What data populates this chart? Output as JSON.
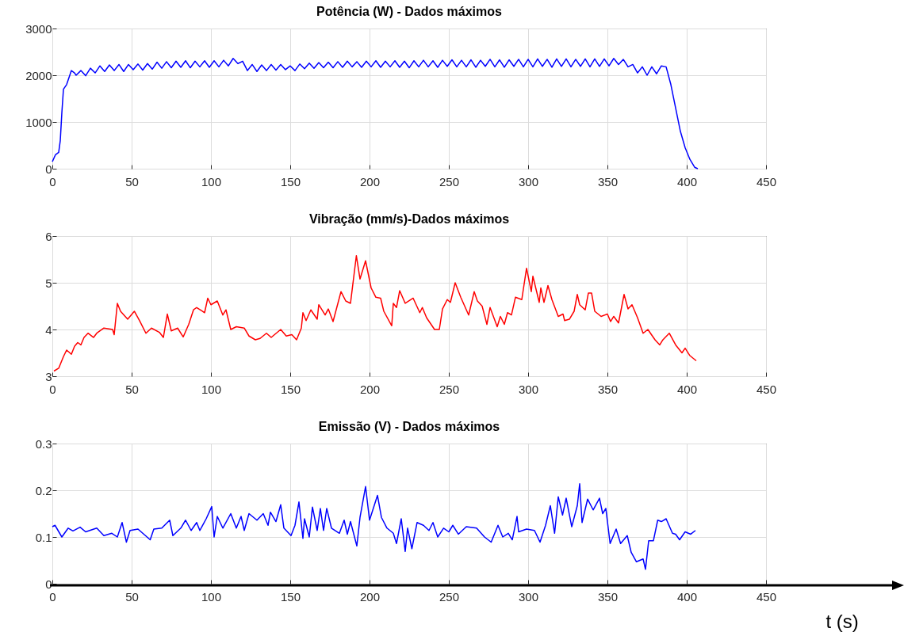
{
  "chart_data": [
    {
      "type": "line",
      "title": "Potência (W) - Dados máximos",
      "color": "#0000ff",
      "marker": "none",
      "line_style": "solid",
      "grid": true,
      "xlim": [
        0,
        450
      ],
      "xticks": [
        0,
        50,
        100,
        150,
        200,
        250,
        300,
        350,
        400,
        450
      ],
      "ylim": [
        0,
        3000
      ],
      "yticks": [
        0,
        1000,
        2000,
        3000
      ],
      "x": [
        0,
        2,
        4,
        5,
        6,
        7,
        9,
        11,
        12,
        14,
        15,
        18,
        21,
        24,
        27,
        30,
        33,
        36,
        39,
        42,
        45,
        48,
        51,
        54,
        57,
        60,
        63,
        66,
        69,
        72,
        75,
        78,
        81,
        84,
        87,
        90,
        93,
        96,
        99,
        102,
        105,
        108,
        111,
        114,
        117,
        120,
        123,
        126,
        129,
        132,
        135,
        138,
        141,
        144,
        147,
        150,
        153,
        156,
        159,
        162,
        165,
        168,
        171,
        174,
        177,
        180,
        183,
        186,
        189,
        192,
        195,
        198,
        201,
        204,
        207,
        210,
        213,
        216,
        219,
        222,
        225,
        228,
        231,
        234,
        237,
        240,
        243,
        246,
        249,
        252,
        255,
        258,
        261,
        264,
        267,
        270,
        273,
        276,
        279,
        282,
        285,
        288,
        291,
        294,
        297,
        300,
        303,
        306,
        309,
        312,
        315,
        318,
        321,
        324,
        327,
        330,
        333,
        336,
        339,
        342,
        345,
        348,
        351,
        354,
        357,
        360,
        363,
        366,
        369,
        372,
        375,
        378,
        381,
        384,
        387,
        390,
        393,
        396,
        399,
        402,
        405,
        407
      ],
      "values": [
        150,
        300,
        350,
        600,
        1200,
        1700,
        1800,
        2000,
        2100,
        2050,
        2000,
        2100,
        1990,
        2150,
        2050,
        2200,
        2080,
        2220,
        2100,
        2230,
        2080,
        2230,
        2120,
        2240,
        2110,
        2250,
        2130,
        2280,
        2150,
        2290,
        2160,
        2300,
        2170,
        2310,
        2160,
        2300,
        2180,
        2310,
        2170,
        2310,
        2180,
        2320,
        2200,
        2360,
        2250,
        2300,
        2100,
        2230,
        2080,
        2220,
        2100,
        2230,
        2110,
        2230,
        2120,
        2200,
        2100,
        2240,
        2140,
        2260,
        2150,
        2270,
        2160,
        2280,
        2160,
        2290,
        2170,
        2300,
        2180,
        2290,
        2170,
        2300,
        2180,
        2310,
        2170,
        2300,
        2180,
        2310,
        2170,
        2300,
        2160,
        2310,
        2180,
        2320,
        2180,
        2310,
        2170,
        2320,
        2190,
        2330,
        2180,
        2320,
        2180,
        2330,
        2170,
        2320,
        2190,
        2340,
        2180,
        2330,
        2170,
        2330,
        2190,
        2340,
        2180,
        2340,
        2180,
        2350,
        2190,
        2340,
        2170,
        2350,
        2190,
        2350,
        2180,
        2340,
        2190,
        2350,
        2180,
        2350,
        2190,
        2350,
        2200,
        2360,
        2230,
        2340,
        2180,
        2230,
        2050,
        2180,
        2000,
        2180,
        2030,
        2200,
        2180,
        1800,
        1300,
        800,
        450,
        200,
        30,
        0
      ]
    },
    {
      "type": "line",
      "title": "Vibração (mm/s)-Dados máximos",
      "color": "#ff0000",
      "marker": "none",
      "line_style": "solid",
      "grid": true,
      "xlim": [
        0,
        450
      ],
      "xticks": [
        0,
        50,
        100,
        150,
        200,
        250,
        300,
        350,
        400,
        450
      ],
      "ylim": [
        3,
        6
      ],
      "yticks": [
        3,
        4,
        5,
        6
      ],
      "x": [
        1,
        4,
        7,
        9,
        12,
        14,
        16,
        18,
        20,
        22.5,
        26,
        28,
        32.5,
        38,
        39,
        41,
        43,
        47.5,
        51.7,
        55,
        59,
        62.5,
        67.5,
        70,
        72.5,
        75,
        79,
        82.5,
        86,
        89,
        91,
        96,
        98,
        100,
        104,
        107.5,
        109.5,
        112.5,
        116,
        121,
        124,
        128,
        131,
        135,
        138,
        144,
        147.5,
        151,
        154,
        157,
        158,
        160,
        163,
        167,
        168,
        172,
        174,
        177,
        182,
        185,
        188,
        191.7,
        194,
        197.5,
        201,
        204,
        207,
        209,
        214,
        215,
        217,
        219,
        222.5,
        227.5,
        231.7,
        233.3,
        236,
        241,
        244,
        246,
        249,
        251,
        254,
        257.5,
        262.5,
        266,
        268,
        271,
        274,
        276,
        280.5,
        282.5,
        285,
        287,
        289.5,
        292,
        296,
        299,
        302,
        303,
        307,
        308,
        310,
        312.5,
        315,
        319,
        322,
        323,
        326,
        329,
        331,
        332.5,
        336,
        338,
        340,
        342,
        346,
        350,
        352,
        354,
        357,
        360.5,
        363,
        365.5,
        369,
        372.5,
        375.5,
        380,
        383,
        385,
        389,
        393,
        397,
        399,
        402,
        406
      ],
      "values": [
        3.11,
        3.17,
        3.42,
        3.56,
        3.47,
        3.64,
        3.72,
        3.67,
        3.83,
        3.92,
        3.83,
        3.92,
        4.03,
        4.0,
        3.89,
        4.56,
        4.39,
        4.22,
        4.39,
        4.19,
        3.92,
        4.03,
        3.94,
        3.83,
        4.33,
        3.97,
        4.03,
        3.84,
        4.11,
        4.42,
        4.47,
        4.36,
        4.67,
        4.53,
        4.61,
        4.31,
        4.42,
        4.0,
        4.06,
        4.03,
        3.86,
        3.78,
        3.81,
        3.92,
        3.83,
        4.0,
        3.86,
        3.89,
        3.78,
        4.03,
        4.36,
        4.19,
        4.42,
        4.22,
        4.53,
        4.31,
        4.44,
        4.17,
        4.81,
        4.61,
        4.56,
        5.58,
        5.08,
        5.47,
        4.89,
        4.69,
        4.67,
        4.39,
        4.08,
        4.56,
        4.47,
        4.83,
        4.56,
        4.67,
        4.36,
        4.47,
        4.25,
        4.0,
        4.0,
        4.44,
        4.64,
        4.58,
        5.0,
        4.69,
        4.31,
        4.81,
        4.61,
        4.5,
        4.11,
        4.47,
        4.06,
        4.28,
        4.11,
        4.36,
        4.31,
        4.69,
        4.64,
        5.31,
        4.81,
        5.14,
        4.58,
        4.89,
        4.58,
        4.94,
        4.64,
        4.28,
        4.33,
        4.19,
        4.22,
        4.39,
        4.75,
        4.53,
        4.42,
        4.78,
        4.78,
        4.39,
        4.28,
        4.33,
        4.17,
        4.28,
        4.14,
        4.75,
        4.44,
        4.53,
        4.25,
        3.92,
        4.0,
        3.78,
        3.67,
        3.78,
        3.92,
        3.67,
        3.5,
        3.6,
        3.44,
        3.33
      ]
    },
    {
      "type": "line",
      "title": "Emissão (V) - Dados máximos",
      "xlabel": "t (s)",
      "color": "#0000ff",
      "marker": "none",
      "line_style": "solid",
      "grid": true,
      "xlim": [
        0,
        450
      ],
      "xticks": [
        0,
        50,
        100,
        150,
        200,
        250,
        300,
        350,
        400,
        450
      ],
      "ylim": [
        0,
        0.3
      ],
      "yticks": [
        0,
        0.1,
        0.2,
        0.3
      ],
      "x": [
        0,
        1.7,
        6,
        10,
        13,
        17.5,
        21,
        28,
        32.5,
        37.5,
        41,
        44,
        46.7,
        49,
        54,
        61.7,
        64,
        69,
        74,
        76,
        81,
        84,
        87.5,
        91,
        93,
        97,
        100.5,
        102,
        104,
        107.5,
        112.5,
        116,
        119,
        121,
        124,
        129,
        133,
        136,
        137.5,
        141,
        144,
        146,
        150.5,
        153,
        155.5,
        158,
        159,
        162,
        164,
        167,
        169,
        171,
        173,
        176,
        181,
        184,
        186,
        188,
        192,
        194,
        197.5,
        200,
        205,
        207.5,
        211,
        215,
        217,
        220,
        222.5,
        224,
        226.7,
        230,
        234,
        237.5,
        240,
        243,
        246.7,
        250,
        252.5,
        256,
        261,
        267.5,
        272.5,
        276.7,
        281,
        284,
        287.5,
        290,
        293,
        294,
        299,
        304,
        307.5,
        311,
        314,
        316.7,
        319,
        321.7,
        324,
        327.5,
        331,
        332.5,
        334,
        337.5,
        341,
        345,
        347,
        349,
        351.7,
        355.5,
        358.3,
        362.5,
        365,
        368.3,
        372.5,
        374,
        376,
        379,
        381.7,
        384,
        387,
        391,
        393,
        395.5,
        399,
        402.5,
        405.5
      ],
      "values": [
        0.122,
        0.125,
        0.1,
        0.119,
        0.113,
        0.121,
        0.111,
        0.119,
        0.103,
        0.108,
        0.1,
        0.131,
        0.089,
        0.114,
        0.117,
        0.094,
        0.117,
        0.119,
        0.136,
        0.103,
        0.119,
        0.136,
        0.114,
        0.131,
        0.114,
        0.139,
        0.165,
        0.1,
        0.144,
        0.119,
        0.15,
        0.119,
        0.144,
        0.114,
        0.15,
        0.136,
        0.15,
        0.125,
        0.153,
        0.133,
        0.169,
        0.119,
        0.103,
        0.125,
        0.175,
        0.097,
        0.139,
        0.1,
        0.164,
        0.114,
        0.161,
        0.114,
        0.161,
        0.119,
        0.108,
        0.136,
        0.106,
        0.133,
        0.081,
        0.142,
        0.208,
        0.136,
        0.189,
        0.142,
        0.119,
        0.108,
        0.086,
        0.139,
        0.069,
        0.119,
        0.075,
        0.131,
        0.125,
        0.114,
        0.131,
        0.1,
        0.119,
        0.111,
        0.125,
        0.106,
        0.122,
        0.119,
        0.1,
        0.089,
        0.125,
        0.1,
        0.108,
        0.094,
        0.144,
        0.111,
        0.117,
        0.114,
        0.089,
        0.125,
        0.167,
        0.108,
        0.186,
        0.147,
        0.183,
        0.122,
        0.167,
        0.214,
        0.131,
        0.181,
        0.158,
        0.183,
        0.15,
        0.161,
        0.086,
        0.117,
        0.086,
        0.103,
        0.067,
        0.047,
        0.053,
        0.031,
        0.092,
        0.092,
        0.136,
        0.133,
        0.139,
        0.108,
        0.106,
        0.094,
        0.111,
        0.106,
        0.114
      ]
    }
  ]
}
